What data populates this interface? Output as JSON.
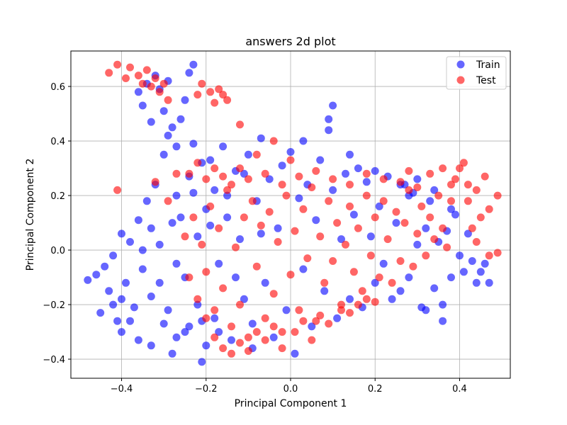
{
  "chart_data": {
    "type": "scatter",
    "title": "answers 2d plot",
    "xlabel": "Principal Component 1",
    "ylabel": "Principal Component 2",
    "xlim": [
      -0.52,
      0.52
    ],
    "ylim": [
      -0.47,
      0.73
    ],
    "xticks": [
      -0.4,
      -0.2,
      0.0,
      0.2,
      0.4
    ],
    "xtick_labels": [
      "−0.4",
      "−0.2",
      "0.0",
      "0.2",
      "0.4"
    ],
    "yticks": [
      -0.4,
      -0.2,
      0.0,
      0.2,
      0.4,
      0.6
    ],
    "ytick_labels": [
      "−0.4",
      "−0.2",
      "0.0",
      "0.2",
      "0.4",
      "0.6"
    ],
    "grid": true,
    "legend_position": "upper-right",
    "series": [
      {
        "name": "Train",
        "color": "#0000ff",
        "alpha": 0.6,
        "points": [
          [
            -0.48,
            -0.11
          ],
          [
            -0.46,
            -0.09
          ],
          [
            -0.45,
            -0.23
          ],
          [
            -0.44,
            -0.06
          ],
          [
            -0.43,
            -0.15
          ],
          [
            -0.42,
            -0.02
          ],
          [
            -0.41,
            -0.26
          ],
          [
            -0.4,
            0.06
          ],
          [
            -0.4,
            -0.3
          ],
          [
            -0.39,
            -0.12
          ],
          [
            -0.38,
            0.03
          ],
          [
            -0.37,
            -0.21
          ],
          [
            -0.36,
            -0.33
          ],
          [
            -0.36,
            0.11
          ],
          [
            -0.35,
            -0.07
          ],
          [
            -0.34,
            0.18
          ],
          [
            -0.33,
            -0.17
          ],
          [
            -0.33,
            -0.35
          ],
          [
            -0.32,
            0.24
          ],
          [
            -0.31,
            0.02
          ],
          [
            -0.3,
            -0.27
          ],
          [
            -0.3,
            0.35
          ],
          [
            -0.29,
            0.42
          ],
          [
            -0.28,
            0.1
          ],
          [
            -0.28,
            -0.38
          ],
          [
            -0.27,
            0.2
          ],
          [
            -0.27,
            -0.05
          ],
          [
            -0.26,
            0.48
          ],
          [
            -0.25,
            0.55
          ],
          [
            -0.25,
            -0.3
          ],
          [
            -0.24,
            0.27
          ],
          [
            -0.24,
            0.65
          ],
          [
            -0.23,
            0.68
          ],
          [
            -0.23,
            0.39
          ],
          [
            -0.22,
            -0.2
          ],
          [
            -0.22,
            0.05
          ],
          [
            -0.21,
            -0.41
          ],
          [
            -0.21,
            0.32
          ],
          [
            -0.2,
            0.15
          ],
          [
            -0.2,
            -0.35
          ],
          [
            -0.36,
            0.58
          ],
          [
            -0.35,
            0.53
          ],
          [
            -0.34,
            0.61
          ],
          [
            -0.33,
            0.47
          ],
          [
            -0.32,
            0.64
          ],
          [
            -0.31,
            0.59
          ],
          [
            -0.3,
            0.51
          ],
          [
            -0.29,
            0.62
          ],
          [
            -0.28,
            0.45
          ],
          [
            -0.27,
            0.38
          ],
          [
            -0.19,
            0.33
          ],
          [
            -0.18,
            -0.25
          ],
          [
            -0.18,
            0.22
          ],
          [
            -0.17,
            -0.05
          ],
          [
            -0.16,
            0.38
          ],
          [
            -0.15,
            0.12
          ],
          [
            -0.14,
            -0.33
          ],
          [
            -0.13,
            0.29
          ],
          [
            -0.12,
            0.04
          ],
          [
            -0.11,
            -0.18
          ],
          [
            -0.1,
            0.35
          ],
          [
            -0.09,
            -0.36
          ],
          [
            -0.08,
            0.18
          ],
          [
            -0.07,
            0.41
          ],
          [
            -0.06,
            -0.12
          ],
          [
            -0.05,
            0.26
          ],
          [
            -0.04,
            -0.32
          ],
          [
            -0.03,
            0.08
          ],
          [
            -0.02,
            0.31
          ],
          [
            -0.01,
            -0.22
          ],
          [
            0.0,
            0.36
          ],
          [
            0.01,
            -0.38
          ],
          [
            0.02,
            0.19
          ],
          [
            0.03,
            -0.07
          ],
          [
            0.03,
            0.4
          ],
          [
            0.04,
            0.24
          ],
          [
            0.05,
            -0.28
          ],
          [
            0.06,
            0.11
          ],
          [
            0.07,
            0.33
          ],
          [
            0.08,
            -0.15
          ],
          [
            0.09,
            0.44
          ],
          [
            0.1,
            0.22
          ],
          [
            0.1,
            0.53
          ],
          [
            0.09,
            0.48
          ],
          [
            0.11,
            -0.25
          ],
          [
            0.12,
            0.04
          ],
          [
            0.13,
            0.28
          ],
          [
            0.14,
            0.35
          ],
          [
            0.14,
            -0.18
          ],
          [
            0.15,
            0.13
          ],
          [
            0.16,
            0.3
          ],
          [
            0.17,
            -0.21
          ],
          [
            0.18,
            0.25
          ],
          [
            0.19,
            0.05
          ],
          [
            0.2,
            0.29
          ],
          [
            0.2,
            -0.12
          ],
          [
            0.21,
            0.16
          ],
          [
            0.22,
            -0.05
          ],
          [
            0.23,
            0.27
          ],
          [
            0.24,
            -0.18
          ],
          [
            0.25,
            0.1
          ],
          [
            0.26,
            -0.15
          ],
          [
            0.27,
            0.24
          ],
          [
            0.28,
            -0.1
          ],
          [
            0.29,
            0.21
          ],
          [
            0.3,
            0.02
          ],
          [
            0.31,
            -0.21
          ],
          [
            0.32,
            0.08
          ],
          [
            0.33,
            0.18
          ],
          [
            0.34,
            -0.14
          ],
          [
            0.35,
            0.03
          ],
          [
            0.36,
            -0.2
          ],
          [
            0.37,
            0.07
          ],
          [
            0.38,
            -0.1
          ],
          [
            0.39,
            0.13
          ],
          [
            0.4,
            -0.02
          ],
          [
            0.41,
            -0.08
          ],
          [
            0.42,
            0.06
          ],
          [
            0.43,
            -0.04
          ],
          [
            0.44,
            -0.12
          ],
          [
            0.45,
            -0.08
          ],
          [
            0.46,
            -0.05
          ],
          [
            0.47,
            -0.12
          ],
          [
            0.38,
            0.15
          ],
          [
            0.36,
            -0.26
          ],
          [
            0.34,
            0.22
          ],
          [
            0.32,
            -0.22
          ],
          [
            0.3,
            0.26
          ],
          [
            0.28,
            0.2
          ],
          [
            0.26,
            0.24
          ],
          [
            -0.25,
            -0.1
          ],
          [
            -0.23,
            0.21
          ],
          [
            -0.21,
            -0.26
          ],
          [
            -0.19,
            0.09
          ],
          [
            -0.17,
            -0.3
          ],
          [
            -0.15,
            0.2
          ],
          [
            -0.13,
            -0.1
          ],
          [
            -0.11,
            0.28
          ],
          [
            -0.09,
            -0.27
          ],
          [
            -0.07,
            0.06
          ],
          [
            -0.4,
            -0.18
          ],
          [
            -0.38,
            -0.26
          ],
          [
            -0.42,
            -0.2
          ],
          [
            -0.35,
            0.0
          ],
          [
            -0.33,
            0.08
          ],
          [
            -0.31,
            -0.12
          ],
          [
            -0.29,
            -0.22
          ],
          [
            -0.27,
            -0.32
          ],
          [
            -0.26,
            0.12
          ],
          [
            -0.24,
            -0.28
          ]
        ]
      },
      {
        "name": "Test",
        "color": "#ff0000",
        "alpha": 0.6,
        "points": [
          [
            -0.43,
            0.65
          ],
          [
            -0.41,
            0.68
          ],
          [
            -0.39,
            0.63
          ],
          [
            -0.38,
            0.67
          ],
          [
            -0.36,
            0.64
          ],
          [
            -0.35,
            0.61
          ],
          [
            -0.34,
            0.66
          ],
          [
            -0.33,
            0.6
          ],
          [
            -0.32,
            0.63
          ],
          [
            -0.31,
            0.58
          ],
          [
            -0.3,
            0.61
          ],
          [
            -0.29,
            0.55
          ],
          [
            -0.41,
            0.22
          ],
          [
            -0.32,
            0.25
          ],
          [
            -0.29,
            0.18
          ],
          [
            -0.27,
            0.28
          ],
          [
            -0.22,
            0.57
          ],
          [
            -0.21,
            0.61
          ],
          [
            -0.19,
            0.58
          ],
          [
            -0.18,
            0.54
          ],
          [
            -0.17,
            0.59
          ],
          [
            -0.16,
            0.57
          ],
          [
            -0.15,
            0.55
          ],
          [
            -0.12,
            0.46
          ],
          [
            -0.08,
            0.35
          ],
          [
            -0.04,
            0.4
          ],
          [
            0.0,
            0.33
          ],
          [
            -0.25,
            0.05
          ],
          [
            -0.24,
            -0.1
          ],
          [
            -0.23,
            0.12
          ],
          [
            -0.22,
            -0.18
          ],
          [
            -0.21,
            0.02
          ],
          [
            -0.2,
            -0.08
          ],
          [
            -0.19,
            0.16
          ],
          [
            -0.18,
            -0.22
          ],
          [
            -0.17,
            0.08
          ],
          [
            -0.16,
            -0.14
          ],
          [
            -0.15,
            0.22
          ],
          [
            -0.14,
            -0.28
          ],
          [
            -0.13,
            0.01
          ],
          [
            -0.12,
            -0.2
          ],
          [
            -0.11,
            0.12
          ],
          [
            -0.1,
            -0.32
          ],
          [
            -0.09,
            0.18
          ],
          [
            -0.08,
            -0.06
          ],
          [
            -0.07,
            0.09
          ],
          [
            -0.06,
            -0.25
          ],
          [
            -0.05,
            0.14
          ],
          [
            -0.04,
            -0.16
          ],
          [
            -0.03,
            0.03
          ],
          [
            -0.02,
            -0.3
          ],
          [
            -0.01,
            0.2
          ],
          [
            0.0,
            -0.09
          ],
          [
            0.01,
            0.07
          ],
          [
            0.02,
            -0.22
          ],
          [
            0.03,
            0.15
          ],
          [
            0.04,
            -0.03
          ],
          [
            0.05,
            0.23
          ],
          [
            0.06,
            -0.26
          ],
          [
            0.07,
            0.05
          ],
          [
            0.08,
            -0.12
          ],
          [
            0.09,
            0.18
          ],
          [
            0.1,
            -0.04
          ],
          [
            0.11,
            0.1
          ],
          [
            0.12,
            -0.2
          ],
          [
            0.13,
            0.02
          ],
          [
            0.14,
            0.16
          ],
          [
            0.15,
            -0.08
          ],
          [
            0.16,
            0.08
          ],
          [
            0.17,
            -0.15
          ],
          [
            0.18,
            0.2
          ],
          [
            0.19,
            -0.02
          ],
          [
            0.2,
            0.12
          ],
          [
            0.21,
            -0.1
          ],
          [
            0.22,
            0.18
          ],
          [
            0.23,
            0.04
          ],
          [
            0.24,
            -0.12
          ],
          [
            0.25,
            0.14
          ],
          [
            0.26,
            -0.04
          ],
          [
            0.27,
            0.1
          ],
          [
            0.28,
            0.22
          ],
          [
            0.29,
            -0.06
          ],
          [
            0.3,
            0.06
          ],
          [
            0.31,
            0.16
          ],
          [
            0.32,
            -0.02
          ],
          [
            0.33,
            0.12
          ],
          [
            0.34,
            0.04
          ],
          [
            0.35,
            0.2
          ],
          [
            0.36,
            0.08
          ],
          [
            0.37,
            0.01
          ],
          [
            0.38,
            0.18
          ],
          [
            0.39,
            0.26
          ],
          [
            0.4,
            0.3
          ],
          [
            0.41,
            0.32
          ],
          [
            0.42,
            0.18
          ],
          [
            0.43,
            0.08
          ],
          [
            0.44,
            0.22
          ],
          [
            0.45,
            0.12
          ],
          [
            0.46,
            0.27
          ],
          [
            0.47,
            0.15
          ],
          [
            0.49,
            0.2
          ],
          [
            0.44,
            0.03
          ],
          [
            0.47,
            -0.02
          ],
          [
            0.49,
            -0.01
          ],
          [
            0.42,
            0.24
          ],
          [
            0.38,
            0.24
          ],
          [
            0.36,
            0.3
          ],
          [
            -0.2,
            -0.25
          ],
          [
            -0.18,
            -0.32
          ],
          [
            -0.16,
            -0.36
          ],
          [
            -0.14,
            -0.38
          ],
          [
            -0.12,
            -0.34
          ],
          [
            -0.1,
            -0.37
          ],
          [
            -0.08,
            -0.3
          ],
          [
            -0.06,
            -0.33
          ],
          [
            -0.04,
            -0.28
          ],
          [
            -0.02,
            -0.36
          ],
          [
            0.01,
            -0.3
          ],
          [
            0.03,
            -0.26
          ],
          [
            0.05,
            -0.33
          ],
          [
            0.07,
            -0.24
          ],
          [
            0.09,
            -0.27
          ],
          [
            0.12,
            -0.22
          ],
          [
            0.14,
            -0.23
          ],
          [
            0.16,
            -0.2
          ],
          [
            0.18,
            -0.18
          ],
          [
            0.2,
            -0.19
          ],
          [
            -0.24,
            0.28
          ],
          [
            -0.22,
            0.32
          ],
          [
            -0.2,
            0.26
          ],
          [
            -0.18,
            0.3
          ],
          [
            -0.16,
            0.27
          ],
          [
            -0.14,
            0.24
          ],
          [
            -0.12,
            0.3
          ],
          [
            -0.1,
            0.26
          ],
          [
            -0.06,
            0.28
          ],
          [
            -0.02,
            0.24
          ],
          [
            0.02,
            0.27
          ],
          [
            0.06,
            0.29
          ],
          [
            0.1,
            0.26
          ],
          [
            0.14,
            0.24
          ],
          [
            0.18,
            0.28
          ],
          [
            0.22,
            0.26
          ],
          [
            0.26,
            0.25
          ],
          [
            0.3,
            0.23
          ],
          [
            0.33,
            0.28
          ],
          [
            0.28,
            0.29
          ]
        ]
      }
    ]
  }
}
